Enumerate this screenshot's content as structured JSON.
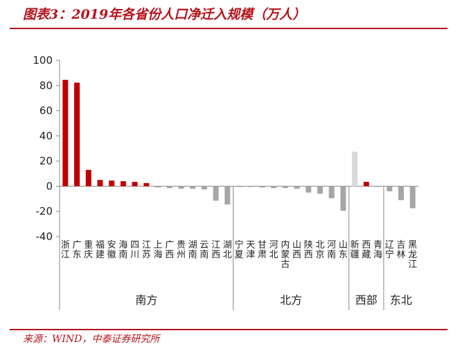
{
  "title": "图表3：2019年各省份人口净迁入规模（万人）",
  "source": "来源：WIND，中泰证券研究所",
  "colors": {
    "accent": "#b5121b",
    "south": "#c00000",
    "negative": "#a6a6a6",
    "positive_other": "#d9d9d9"
  },
  "chart_data": {
    "type": "bar",
    "title": "图表3：2019年各省份人口净迁入规模（万人）",
    "xlabel": "",
    "ylabel": "",
    "ylim": [
      -40,
      100
    ],
    "yticks": [
      -40,
      -20,
      0,
      20,
      40,
      60,
      80,
      100
    ],
    "grid": false,
    "categories": [
      "浙江",
      "广东",
      "重庆",
      "福建",
      "安徽",
      "海南",
      "四川",
      "江苏",
      "上海",
      "广西",
      "贵州",
      "湖南",
      "云南",
      "江西",
      "湖北",
      "宁夏",
      "天津",
      "甘肃",
      "河北",
      "内蒙古",
      "山西",
      "陕西",
      "北京",
      "河南",
      "山东",
      "新疆",
      "西藏",
      "青海",
      "辽宁",
      "吉林",
      "黑龙江"
    ],
    "values": [
      84.5,
      82.3,
      13,
      5,
      4.5,
      4,
      3.5,
      2.5,
      -1,
      -1.5,
      -2,
      -2,
      -2.5,
      -11.5,
      -14.5,
      -0.5,
      -0.5,
      -1,
      -1.5,
      -1.5,
      -2,
      -5,
      -6,
      -9.5,
      -19.5,
      27.5,
      3.5,
      -0.5,
      -4,
      -11,
      -17.5
    ],
    "groups": [
      {
        "name": "南方",
        "count": 15
      },
      {
        "name": "北方",
        "count": 10
      },
      {
        "name": "西部",
        "count": 3
      },
      {
        "name": "东北",
        "count": 3
      }
    ]
  }
}
